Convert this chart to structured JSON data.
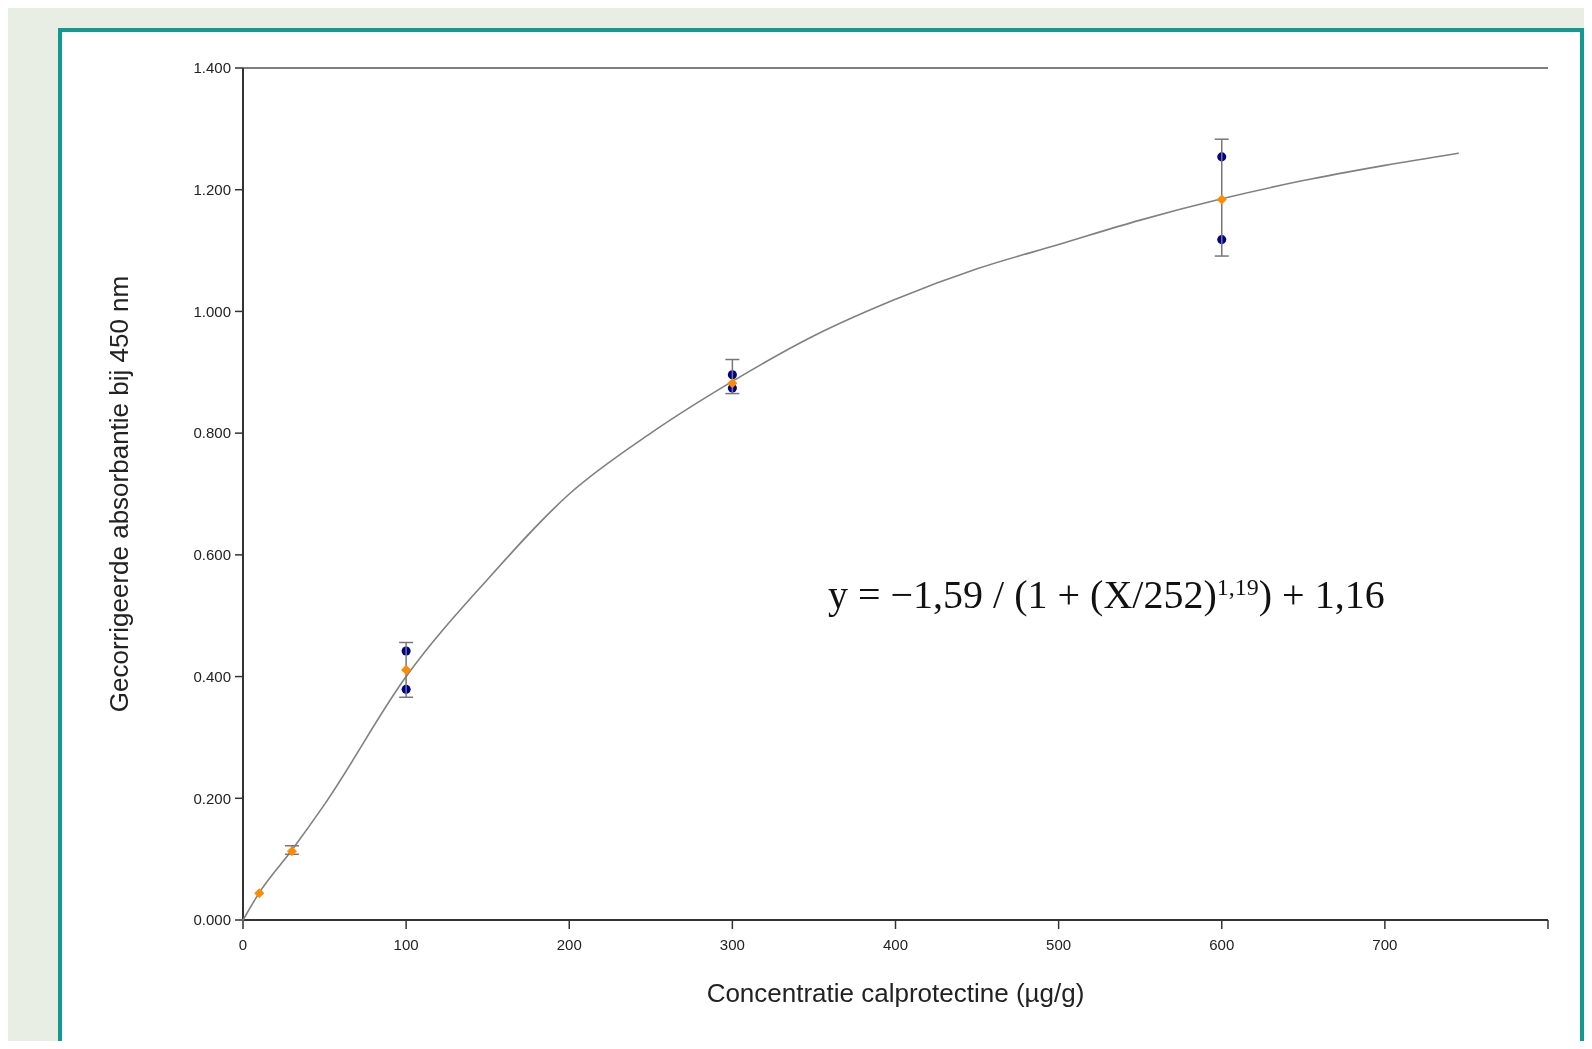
{
  "chart_data": {
    "type": "scatter",
    "xlabel": "Concentratie calprotectine (µg/g)",
    "ylabel": "Gecorrigeerde absorbantie bij 450 nm",
    "xlim": [
      0,
      800
    ],
    "xticks": [
      0,
      100,
      200,
      300,
      400,
      500,
      600,
      700,
      {
        "value": 800,
        "label": null
      }
    ],
    "ylim": [
      0,
      1.4
    ],
    "yticks": [
      {
        "value": 0,
        "label": "0.000"
      },
      {
        "value": 0.2,
        "label": "0.200"
      },
      {
        "value": 0.4,
        "label": "0.400"
      },
      {
        "value": 0.6,
        "label": "0.600"
      },
      {
        "value": 0.8,
        "label": "0.800"
      },
      {
        "value": 1,
        "label": "1.000"
      },
      {
        "value": 1.2,
        "label": "1.200"
      },
      {
        "value": 1.4,
        "label": "1.400"
      }
    ],
    "grid": false,
    "series": [
      {
        "type": "line",
        "color": "#808080",
        "marker": "none",
        "line_style": "solid",
        "x": [
          0,
          10,
          30,
          50,
          100,
          150,
          200,
          250,
          300,
          350,
          400,
          450,
          500,
          550,
          600,
          650,
          700,
          745
        ],
        "values": [
          0,
          0.045,
          0.115,
          0.19,
          0.4,
          0.56,
          0.7,
          0.8,
          0.885,
          0.96,
          1.02,
          1.07,
          1.11,
          1.15,
          1.185,
          1.215,
          1.24,
          1.26
        ]
      },
      {
        "color": "#00008b",
        "marker": "circle",
        "x": [
          100,
          100,
          300,
          300,
          600,
          600
        ],
        "values": [
          0.442,
          0.379,
          0.896,
          0.874,
          1.254,
          1.118
        ]
      },
      {
        "color": "#ff8c00",
        "marker": "diamond",
        "x": [
          10,
          30,
          100,
          300,
          600
        ],
        "values": [
          0.044,
          0.113,
          0.411,
          0.882,
          1.184
        ],
        "errors": [
          null,
          [
            0.108,
            0.122
          ],
          [
            0.366,
            0.456
          ],
          [
            0.865,
            0.921
          ],
          [
            1.091,
            1.283
          ]
        ]
      }
    ],
    "annotations": [
      "y = −1,59 / (1 + (X/252)$^{1,19}$) + 1,16"
    ]
  }
}
